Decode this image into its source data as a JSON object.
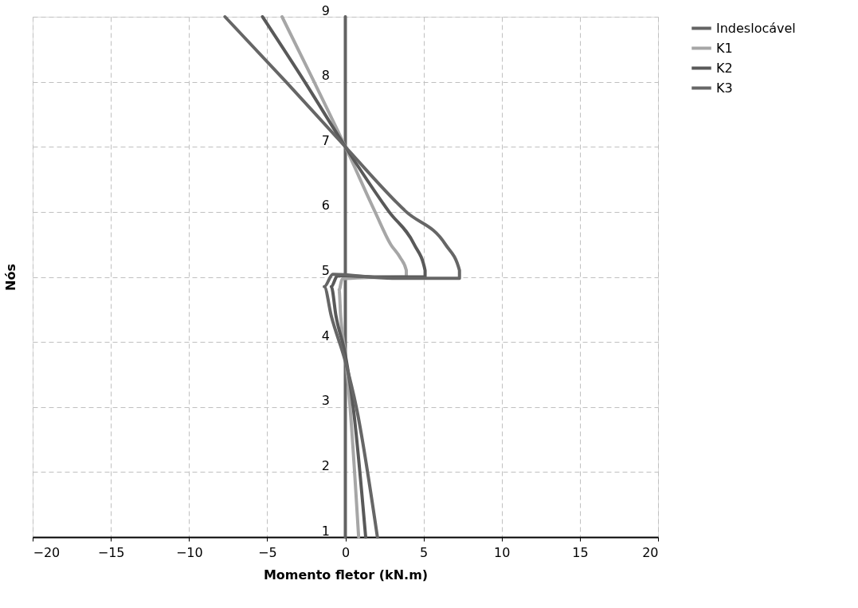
{
  "chart_data": {
    "type": "line",
    "xlabel": "Momento fletor (kN.m)",
    "ylabel": "Nós",
    "xlim": [
      -20,
      20
    ],
    "xticks": [
      -20,
      -15,
      -10,
      -5,
      0,
      5,
      10,
      15,
      20
    ],
    "ylim": [
      1,
      9
    ],
    "yticks": [
      1,
      2,
      3,
      4,
      5,
      6,
      7,
      8,
      9
    ],
    "grid": true,
    "legend": "right",
    "marker": "none",
    "line_style": "solid",
    "series": [
      {
        "name": "Indeslocável",
        "color": "#636363",
        "x": [
          0,
          0,
          0,
          0,
          0
        ],
        "values": [
          1,
          4,
          5,
          7,
          9
        ]
      },
      {
        "name": "K1",
        "color": "#a6a6a6",
        "x": [
          0.85,
          0.3,
          0,
          -0.3,
          -0.4,
          -0.2,
          1.5,
          3.9,
          3.9,
          3.5,
          2.9,
          1.9,
          0,
          -2,
          -4.05
        ],
        "values": [
          1,
          3,
          3.8,
          4.4,
          4.8,
          4.97,
          4.99,
          5.0,
          5.1,
          5.3,
          5.5,
          6,
          7,
          8,
          9
        ]
      },
      {
        "name": "K2",
        "color": "#595959",
        "x": [
          1.3,
          0.5,
          0,
          -0.6,
          -0.9,
          -0.5,
          2.0,
          5.1,
          5.1,
          4.4,
          2.8,
          0,
          -2.6,
          -5.3
        ],
        "values": [
          1,
          3,
          3.8,
          4.4,
          4.85,
          5.02,
          5.0,
          5.0,
          5.1,
          5.5,
          6,
          7,
          8,
          9
        ]
      },
      {
        "name": "K3",
        "color": "#666666",
        "x": [
          2.05,
          0.7,
          0,
          -0.9,
          -1.35,
          -0.8,
          3.0,
          7.3,
          7.3,
          6.4,
          3.9,
          0,
          -3.8,
          -7.7
        ],
        "values": [
          1,
          3,
          3.7,
          4.4,
          4.85,
          5.04,
          4.98,
          4.98,
          5.1,
          5.5,
          6,
          7,
          8,
          9
        ]
      }
    ]
  }
}
